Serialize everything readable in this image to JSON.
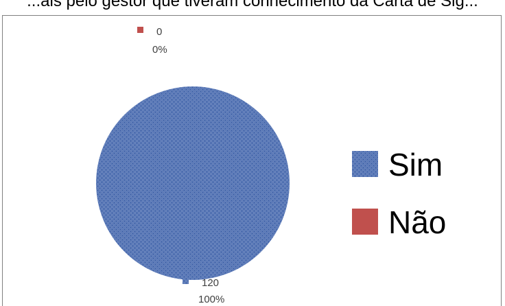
{
  "caption": "...ais pelo gestor que tiveram conhecimento da Carta de Sig...",
  "chart_data": {
    "type": "pie",
    "title": "",
    "categories": [
      "Sim",
      "Não"
    ],
    "values": [
      120,
      0
    ],
    "percent_labels": [
      "100%",
      "0%"
    ],
    "value_labels": [
      "120",
      "0"
    ],
    "colors": [
      "#4f6fb0",
      "#c0504d"
    ],
    "legend_position": "right",
    "legend": [
      "Sim",
      "Não"
    ]
  }
}
